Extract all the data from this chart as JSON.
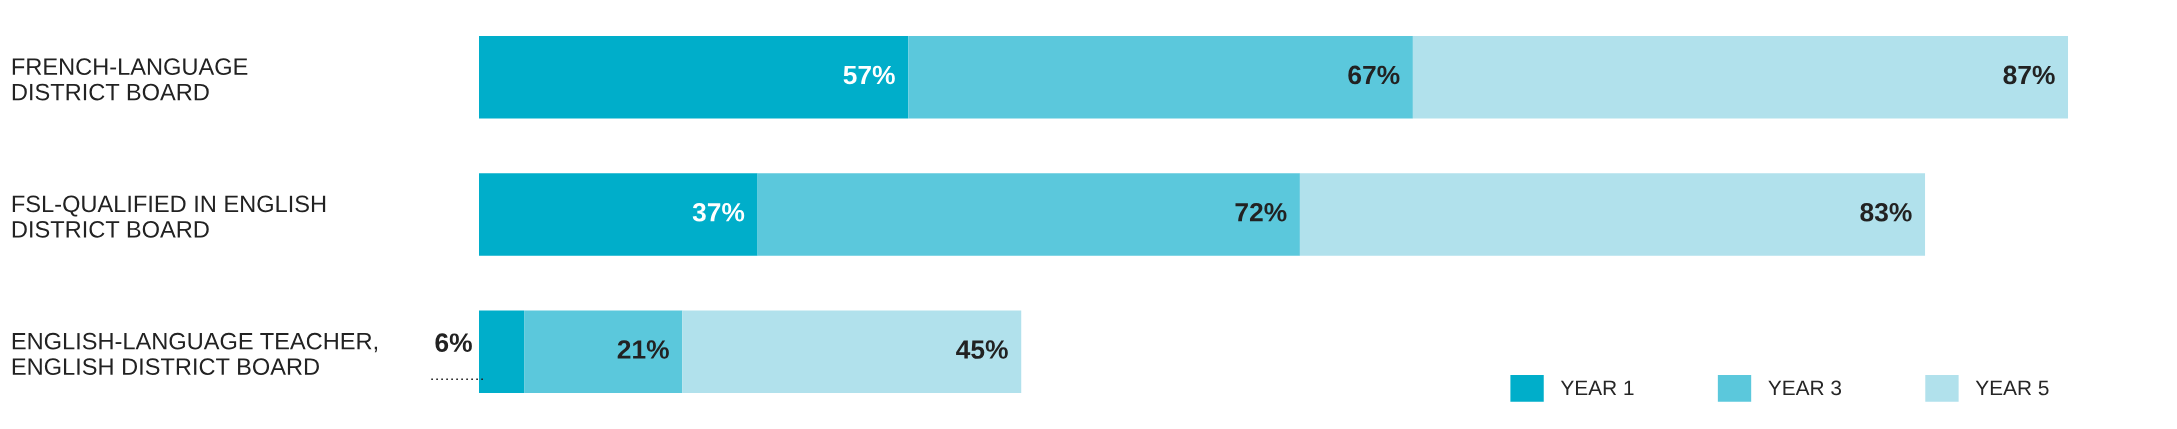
{
  "chart_data": {
    "type": "bar",
    "orientation": "horizontal",
    "stacked": true,
    "categories": [
      "FRENCH-LANGUAGE\nDISTRICT BOARD",
      "FSL-QUALIFIED IN ENGLISH\nDISTRICT BOARD",
      "ENGLISH-LANGUAGE TEACHER,\nENGLISH DISTRICT BOARD"
    ],
    "series": [
      {
        "name": "YEAR 1",
        "color": "#00aeca",
        "values": [
          57,
          37,
          6
        ],
        "value_labels": [
          "57%",
          "37%",
          "6%"
        ]
      },
      {
        "name": "YEAR 3",
        "color": "#5bc8dc",
        "values": [
          67,
          72,
          21
        ],
        "value_labels": [
          "67%",
          "72%",
          "21%"
        ]
      },
      {
        "name": "YEAR 5",
        "color": "#b1e1ec",
        "values": [
          87,
          83,
          45
        ],
        "value_labels": [
          "87%",
          "83%",
          "45%"
        ]
      }
    ],
    "legend": "bottom right",
    "grid": false
  }
}
